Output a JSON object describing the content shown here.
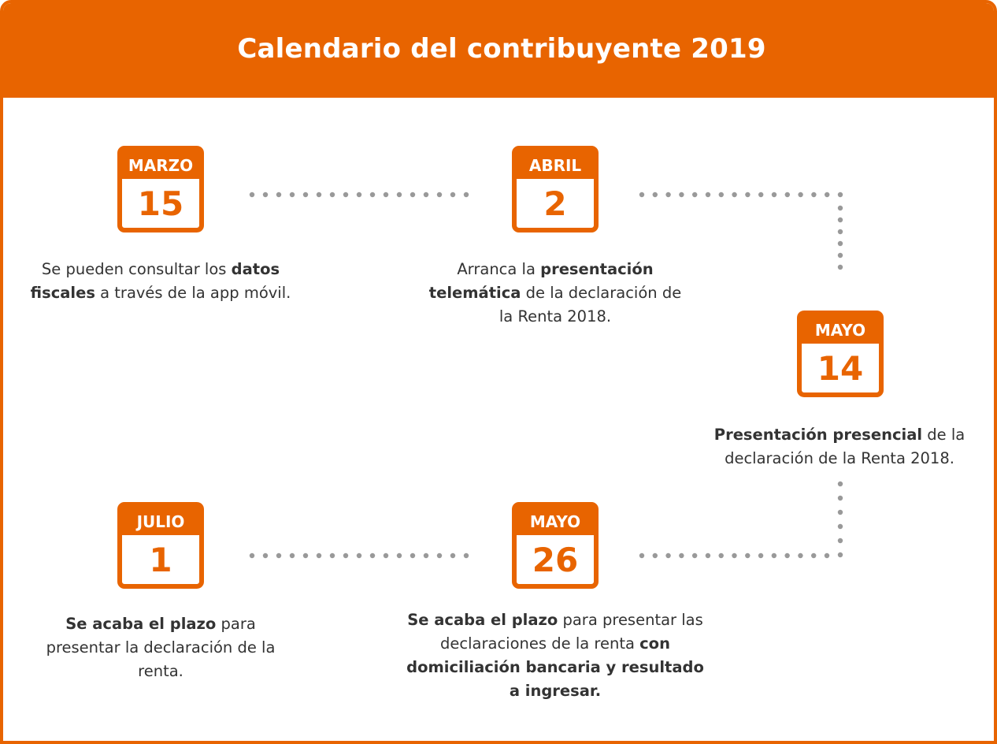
{
  "title": "Calendario del contribuyente 2019",
  "events": [
    {
      "month": "MARZO",
      "day": "15",
      "description": [
        {
          "text": "Se pueden consultar los ",
          "bold": false
        },
        {
          "text": "datos fiscales",
          "bold": true
        },
        {
          "text": " a través de la app móvil.",
          "bold": false
        }
      ]
    },
    {
      "month": "ABRIL",
      "day": "2",
      "description": [
        {
          "text": "Arranca la ",
          "bold": false
        },
        {
          "text": "presentación telemática",
          "bold": true
        },
        {
          "text": " de la declaración de la Renta 2018.",
          "bold": false
        }
      ]
    },
    {
      "month": "MAYO",
      "day": "14",
      "description": [
        {
          "text": "Presentación presencial",
          "bold": true
        },
        {
          "text": " de la declaración de la Renta 2018.",
          "bold": false
        }
      ]
    },
    {
      "month": "MAYO",
      "day": "26",
      "description": [
        {
          "text": "Se acaba el plazo",
          "bold": true
        },
        {
          "text": " para presentar las declaraciones de la renta ",
          "bold": false
        },
        {
          "text": "con domiciliación bancaria y resultado a ingresar.",
          "bold": true
        }
      ]
    },
    {
      "month": "JULIO",
      "day": "1",
      "description": [
        {
          "text": "Se acaba el plazo",
          "bold": true
        },
        {
          "text": " para presentar la declaración de la renta.",
          "bold": false
        }
      ]
    }
  ],
  "colors": {
    "accent": "#E86400",
    "text": "#333333",
    "connector": "#999999"
  }
}
